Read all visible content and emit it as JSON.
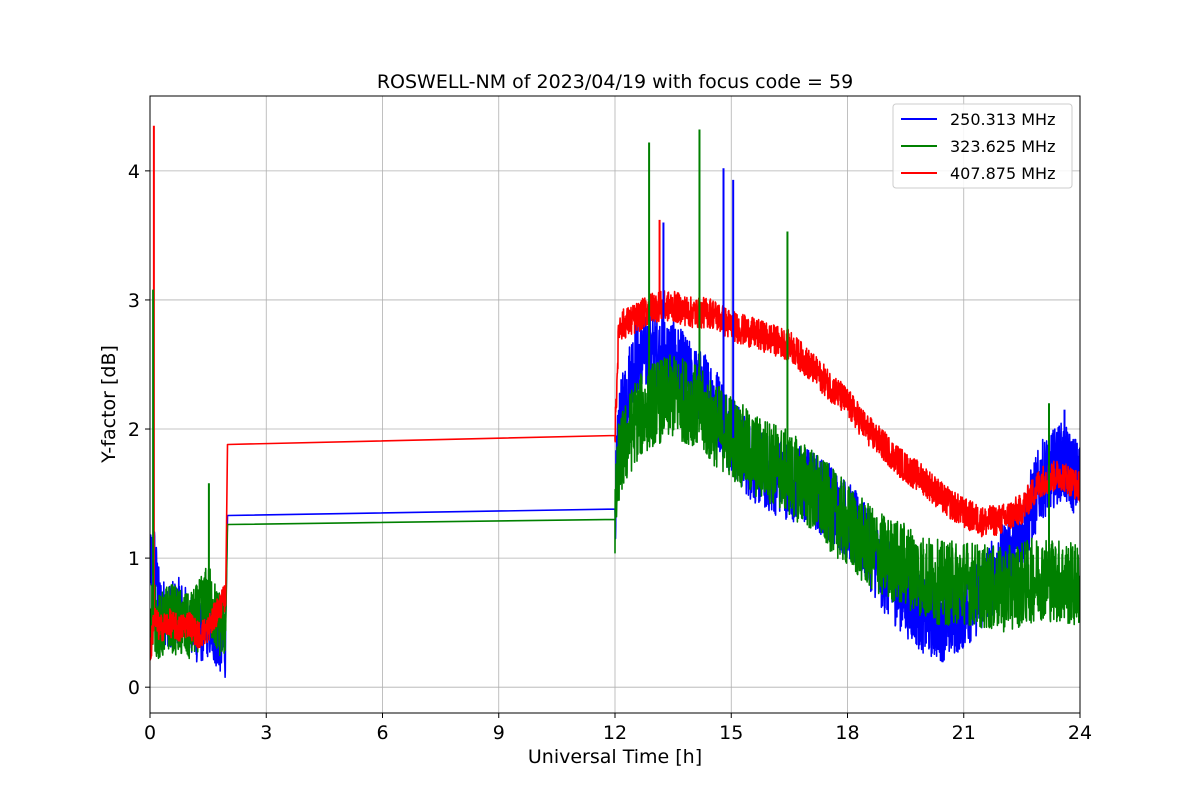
{
  "chart_data": {
    "type": "line",
    "title": "ROSWELL-NM of 2023/04/19 with focus code = 59",
    "xlabel": "Universal Time [h]",
    "ylabel": "Y-factor [dB]",
    "xlim": [
      0,
      24
    ],
    "ylim": [
      -0.2,
      4.58
    ],
    "x_ticks": [
      0,
      3,
      6,
      9,
      12,
      15,
      18,
      21,
      24
    ],
    "y_ticks": [
      0,
      1,
      2,
      3,
      4
    ],
    "grid": true,
    "legend_position": "top-right",
    "series": [
      {
        "name": "250.313 MHz",
        "color": "#0000ff",
        "points": [
          [
            0.0,
            0.9
          ],
          [
            0.1,
            1.05
          ],
          [
            0.25,
            0.62
          ],
          [
            0.5,
            0.55
          ],
          [
            0.75,
            0.6
          ],
          [
            1.0,
            0.5
          ],
          [
            1.25,
            0.42
          ],
          [
            1.5,
            0.48
          ],
          [
            1.75,
            0.38
          ],
          [
            1.95,
            0.3
          ],
          [
            2.0,
            1.33
          ],
          [
            12.0,
            1.38
          ],
          [
            12.1,
            2.0
          ],
          [
            12.5,
            2.55
          ],
          [
            13.0,
            2.6
          ],
          [
            13.5,
            2.55
          ],
          [
            14.0,
            2.35
          ],
          [
            14.5,
            2.25
          ],
          [
            15.0,
            1.95
          ],
          [
            15.5,
            1.75
          ],
          [
            16.0,
            1.65
          ],
          [
            16.5,
            1.6
          ],
          [
            17.0,
            1.55
          ],
          [
            17.5,
            1.45
          ],
          [
            18.0,
            1.3
          ],
          [
            18.5,
            1.1
          ],
          [
            19.0,
            0.85
          ],
          [
            19.5,
            0.7
          ],
          [
            20.0,
            0.55
          ],
          [
            20.5,
            0.5
          ],
          [
            21.0,
            0.6
          ],
          [
            21.5,
            0.75
          ],
          [
            22.0,
            0.95
          ],
          [
            22.5,
            1.2
          ],
          [
            23.0,
            1.6
          ],
          [
            23.5,
            1.75
          ],
          [
            24.0,
            1.6
          ]
        ]
      },
      {
        "name": "323.625 MHz",
        "color": "#008000",
        "points": [
          [
            0.0,
            0.6
          ],
          [
            0.1,
            0.55
          ],
          [
            0.25,
            0.45
          ],
          [
            0.5,
            0.55
          ],
          [
            0.75,
            0.5
          ],
          [
            1.0,
            0.45
          ],
          [
            1.25,
            0.55
          ],
          [
            1.5,
            0.7
          ],
          [
            1.75,
            0.5
          ],
          [
            1.95,
            0.5
          ],
          [
            2.0,
            1.26
          ],
          [
            12.0,
            1.3
          ],
          [
            12.1,
            1.75
          ],
          [
            12.5,
            2.05
          ],
          [
            13.0,
            2.2
          ],
          [
            13.5,
            2.25
          ],
          [
            14.0,
            2.2
          ],
          [
            14.5,
            2.05
          ],
          [
            15.0,
            1.95
          ],
          [
            15.5,
            1.8
          ],
          [
            16.0,
            1.75
          ],
          [
            16.5,
            1.65
          ],
          [
            17.0,
            1.55
          ],
          [
            17.5,
            1.4
          ],
          [
            18.0,
            1.25
          ],
          [
            18.5,
            1.1
          ],
          [
            19.0,
            1.0
          ],
          [
            19.5,
            0.95
          ],
          [
            20.0,
            0.85
          ],
          [
            20.5,
            0.8
          ],
          [
            21.0,
            0.82
          ],
          [
            21.5,
            0.78
          ],
          [
            22.0,
            0.75
          ],
          [
            22.5,
            0.8
          ],
          [
            23.0,
            0.85
          ],
          [
            23.5,
            0.82
          ],
          [
            24.0,
            0.78
          ]
        ]
      },
      {
        "name": "407.875 MHz",
        "color": "#ff0000",
        "points": [
          [
            0.0,
            0.2
          ],
          [
            0.1,
            0.55
          ],
          [
            0.25,
            0.45
          ],
          [
            0.5,
            0.5
          ],
          [
            0.75,
            0.45
          ],
          [
            1.0,
            0.5
          ],
          [
            1.25,
            0.4
          ],
          [
            1.5,
            0.45
          ],
          [
            1.75,
            0.6
          ],
          [
            1.95,
            0.7
          ],
          [
            2.0,
            1.88
          ],
          [
            12.0,
            1.95
          ],
          [
            12.1,
            2.8
          ],
          [
            12.5,
            2.85
          ],
          [
            13.0,
            2.95
          ],
          [
            13.5,
            2.95
          ],
          [
            14.0,
            2.9
          ],
          [
            14.5,
            2.9
          ],
          [
            15.0,
            2.8
          ],
          [
            15.5,
            2.75
          ],
          [
            16.0,
            2.7
          ],
          [
            16.5,
            2.65
          ],
          [
            17.0,
            2.5
          ],
          [
            17.5,
            2.35
          ],
          [
            18.0,
            2.2
          ],
          [
            18.5,
            2.0
          ],
          [
            19.0,
            1.85
          ],
          [
            19.5,
            1.7
          ],
          [
            20.0,
            1.6
          ],
          [
            20.5,
            1.45
          ],
          [
            21.0,
            1.35
          ],
          [
            21.5,
            1.28
          ],
          [
            22.0,
            1.3
          ],
          [
            22.5,
            1.38
          ],
          [
            23.0,
            1.6
          ],
          [
            23.5,
            1.65
          ],
          [
            24.0,
            1.55
          ]
        ]
      }
    ],
    "spikes": [
      {
        "series": 2,
        "x": 0.1,
        "y": 4.35
      },
      {
        "series": 1,
        "x": 0.08,
        "y": 3.08
      },
      {
        "series": 1,
        "x": 12.88,
        "y": 4.22
      },
      {
        "series": 1,
        "x": 14.18,
        "y": 4.32
      },
      {
        "series": 0,
        "x": 14.8,
        "y": 4.02
      },
      {
        "series": 0,
        "x": 15.05,
        "y": 3.93
      },
      {
        "series": 0,
        "x": 13.25,
        "y": 3.6
      },
      {
        "series": 2,
        "x": 13.15,
        "y": 3.62
      },
      {
        "series": 1,
        "x": 16.45,
        "y": 3.53
      },
      {
        "series": 1,
        "x": 1.52,
        "y": 1.58
      },
      {
        "series": 0,
        "x": 23.6,
        "y": 2.15
      },
      {
        "series": 1,
        "x": 23.2,
        "y": 2.2
      }
    ]
  }
}
